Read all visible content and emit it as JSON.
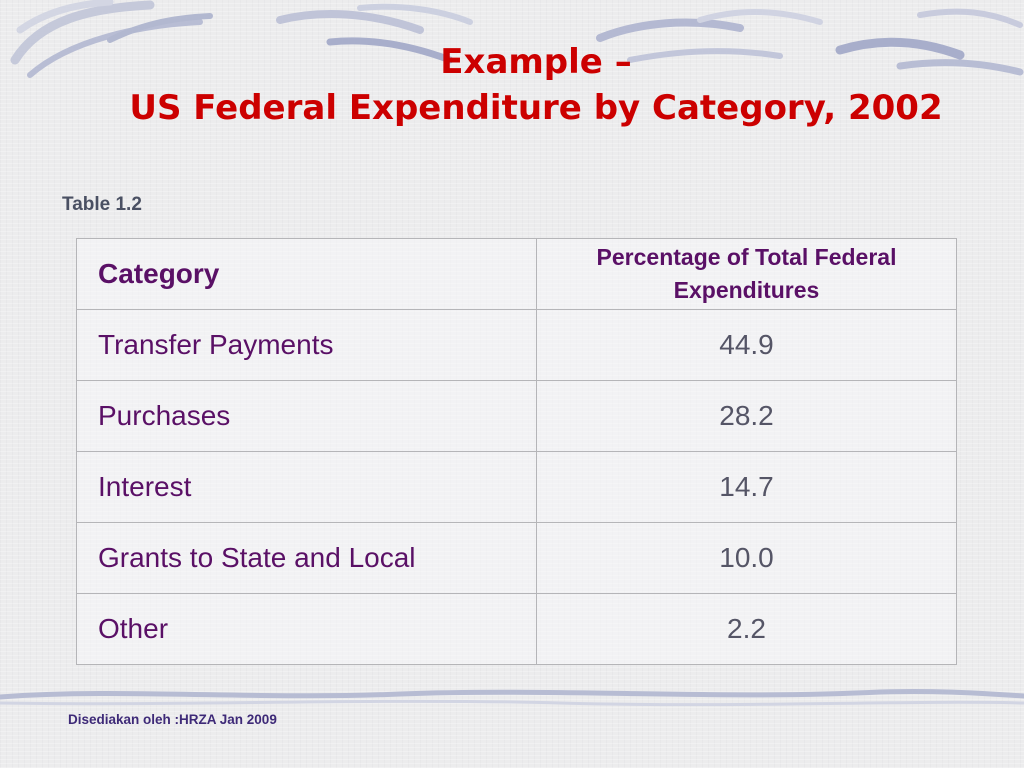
{
  "slide": {
    "title_line1": "Example –",
    "title_line2": "US Federal Expenditure by Category, 2002",
    "table_label": "Table 1.2",
    "footer": "Disediakan oleh :HRZA Jan 2009"
  },
  "table": {
    "headers": [
      "Category",
      "Percentage of Total Federal Expenditures"
    ],
    "rows": [
      {
        "category": "Transfer Payments",
        "value": "44.9"
      },
      {
        "category": "Purchases",
        "value": "28.2"
      },
      {
        "category": "Interest",
        "value": "14.7"
      },
      {
        "category": "Grants to State and Local",
        "value": "10.0"
      },
      {
        "category": "Other",
        "value": "2.2"
      }
    ]
  },
  "colors": {
    "title": "#cc0000",
    "text": "#5a1066",
    "value": "#555566",
    "background": "#ececed",
    "decoration": "#aab0cc"
  }
}
